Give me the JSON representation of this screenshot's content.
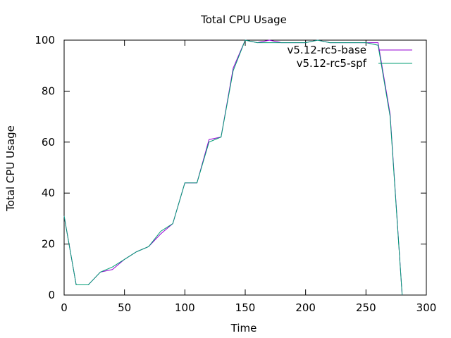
{
  "chart_data": {
    "type": "line",
    "title": "Total CPU Usage",
    "xlabel": "Time",
    "ylabel": "Total CPU Usage",
    "xlim": [
      0,
      300
    ],
    "ylim": [
      0,
      100
    ],
    "xticks": [
      0,
      50,
      100,
      150,
      200,
      250,
      300
    ],
    "yticks": [
      0,
      20,
      40,
      60,
      80,
      100
    ],
    "grid": false,
    "legend_position": "top-right",
    "series": [
      {
        "name": "v5.12-rc5-base",
        "color": "#9400d3",
        "x": [
          0,
          10,
          20,
          30,
          40,
          50,
          60,
          70,
          80,
          90,
          100,
          110,
          120,
          130,
          140,
          150,
          160,
          170,
          180,
          190,
          200,
          210,
          220,
          230,
          240,
          250,
          260,
          270,
          280
        ],
        "y": [
          31,
          4,
          4,
          9,
          10,
          14,
          17,
          19,
          24,
          28,
          44,
          44,
          61,
          62,
          89,
          100,
          99,
          100,
          99,
          99,
          99,
          100,
          99,
          99,
          99,
          99,
          99,
          71,
          0
        ]
      },
      {
        "name": "v5.12-rc5-spf",
        "color": "#009e73",
        "x": [
          0,
          10,
          20,
          30,
          40,
          50,
          60,
          70,
          80,
          90,
          100,
          110,
          120,
          130,
          140,
          150,
          160,
          170,
          180,
          190,
          200,
          210,
          220,
          230,
          240,
          250,
          260,
          270,
          280
        ],
        "y": [
          31,
          4,
          4,
          9,
          11,
          14,
          17,
          19,
          25,
          28,
          44,
          44,
          60,
          62,
          88,
          100,
          99,
          99,
          99,
          99,
          99,
          100,
          99,
          99,
          99,
          99,
          98,
          70,
          0
        ]
      }
    ]
  }
}
